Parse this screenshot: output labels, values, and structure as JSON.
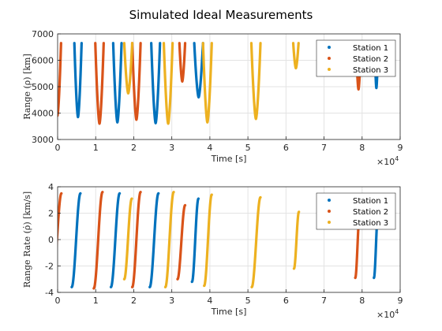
{
  "figure": {
    "title": "Simulated Ideal Measurements",
    "x_exponent_base": "×10",
    "x_exponent_power": "4"
  },
  "chart_data": [
    {
      "type": "scatter",
      "title": "",
      "xlabel": "Time [s]",
      "ylabel": "Range (ρ) [km]",
      "xlim": [
        0,
        9
      ],
      "x_unit_multiplier": 10000,
      "ylim": [
        3000,
        7000
      ],
      "xticks": [
        0,
        1,
        2,
        3,
        4,
        5,
        6,
        7,
        8,
        9
      ],
      "yticks": [
        3000,
        4000,
        5000,
        6000,
        7000
      ],
      "grid": true,
      "legend": "top-right",
      "series": [
        {
          "name": "Station 1",
          "color": "#0072BD",
          "passes": [
            [
              0.44,
              0.63,
              3850
            ],
            [
              1.46,
              1.68,
              3650
            ],
            [
              2.46,
              2.69,
              3620
            ],
            [
              3.59,
              3.82,
              4600
            ],
            [
              8.33,
              8.42,
              4950
            ]
          ]
        },
        {
          "name": "Station 2",
          "color": "#D95319",
          "passes": [
            [
              -0.1,
              0.09,
              3900
            ],
            [
              0.99,
              1.21,
              3600
            ],
            [
              1.96,
              2.18,
              3750
            ],
            [
              3.2,
              3.35,
              5200
            ],
            [
              7.84,
              7.97,
              4900
            ]
          ]
        },
        {
          "name": "Station 3",
          "color": "#EDB120",
          "passes": [
            [
              1.75,
              1.96,
              4750
            ],
            [
              2.79,
              3.02,
              3600
            ],
            [
              3.82,
              4.05,
              3650
            ],
            [
              5.09,
              5.33,
              3780
            ],
            [
              6.19,
              6.33,
              5700
            ]
          ]
        }
      ]
    },
    {
      "type": "scatter",
      "title": "",
      "xlabel": "Time [s]",
      "ylabel": "Range Rate (ρ̇) [km/s]",
      "xlim": [
        0,
        9
      ],
      "x_unit_multiplier": 10000,
      "ylim": [
        -4,
        4
      ],
      "xticks": [
        0,
        1,
        2,
        3,
        4,
        5,
        6,
        7,
        8,
        9
      ],
      "yticks": [
        -4,
        -2,
        0,
        2,
        4
      ],
      "grid": true,
      "legend": "top-right",
      "series": [
        {
          "name": "Station 1",
          "color": "#0072BD",
          "passes": [
            [
              0.37,
              0.6,
              -3.6,
              3.5
            ],
            [
              1.4,
              1.63,
              -3.6,
              3.5
            ],
            [
              2.42,
              2.65,
              -3.6,
              3.5
            ],
            [
              3.53,
              3.7,
              -3.2,
              3.1
            ],
            [
              8.31,
              8.42,
              -2.9,
              2.1
            ]
          ]
        },
        {
          "name": "Station 2",
          "color": "#D95319",
          "passes": [
            [
              -0.1,
              0.1,
              -2.0,
              3.5
            ],
            [
              0.95,
              1.18,
              -3.7,
              3.6
            ],
            [
              1.96,
              2.18,
              -3.6,
              3.6
            ],
            [
              3.15,
              3.35,
              -3.0,
              2.6
            ],
            [
              7.82,
              7.94,
              -2.9,
              2.1
            ]
          ]
        },
        {
          "name": "Station 3",
          "color": "#EDB120",
          "passes": [
            [
              1.75,
              1.95,
              -3.0,
              3.1
            ],
            [
              2.83,
              3.05,
              -3.6,
              3.6
            ],
            [
              3.85,
              4.05,
              -3.5,
              3.4
            ],
            [
              5.1,
              5.33,
              -3.6,
              3.2
            ],
            [
              6.21,
              6.34,
              -2.2,
              2.1
            ]
          ]
        }
      ]
    }
  ]
}
